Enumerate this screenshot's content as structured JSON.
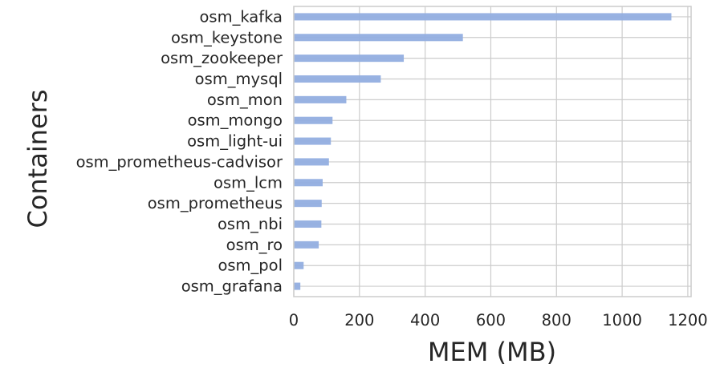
{
  "chart_data": {
    "type": "bar",
    "orientation": "horizontal",
    "xlabel": "MEM (MB)",
    "ylabel": "Containers",
    "xlim": [
      0,
      1210
    ],
    "xticks": [
      0,
      200,
      400,
      600,
      800,
      1000,
      1200
    ],
    "grid": true,
    "bar_color": "#92aee0",
    "categories": [
      "osm_kafka",
      "osm_keystone",
      "osm_zookeeper",
      "osm_mysql",
      "osm_mon",
      "osm_mongo",
      "osm_light-ui",
      "osm_prometheus-cadvisor",
      "osm_lcm",
      "osm_prometheus",
      "osm_nbi",
      "osm_ro",
      "osm_pol",
      "osm_grafana"
    ],
    "values": [
      1150,
      515,
      335,
      265,
      160,
      118,
      113,
      107,
      88,
      85,
      84,
      76,
      30,
      20
    ]
  }
}
